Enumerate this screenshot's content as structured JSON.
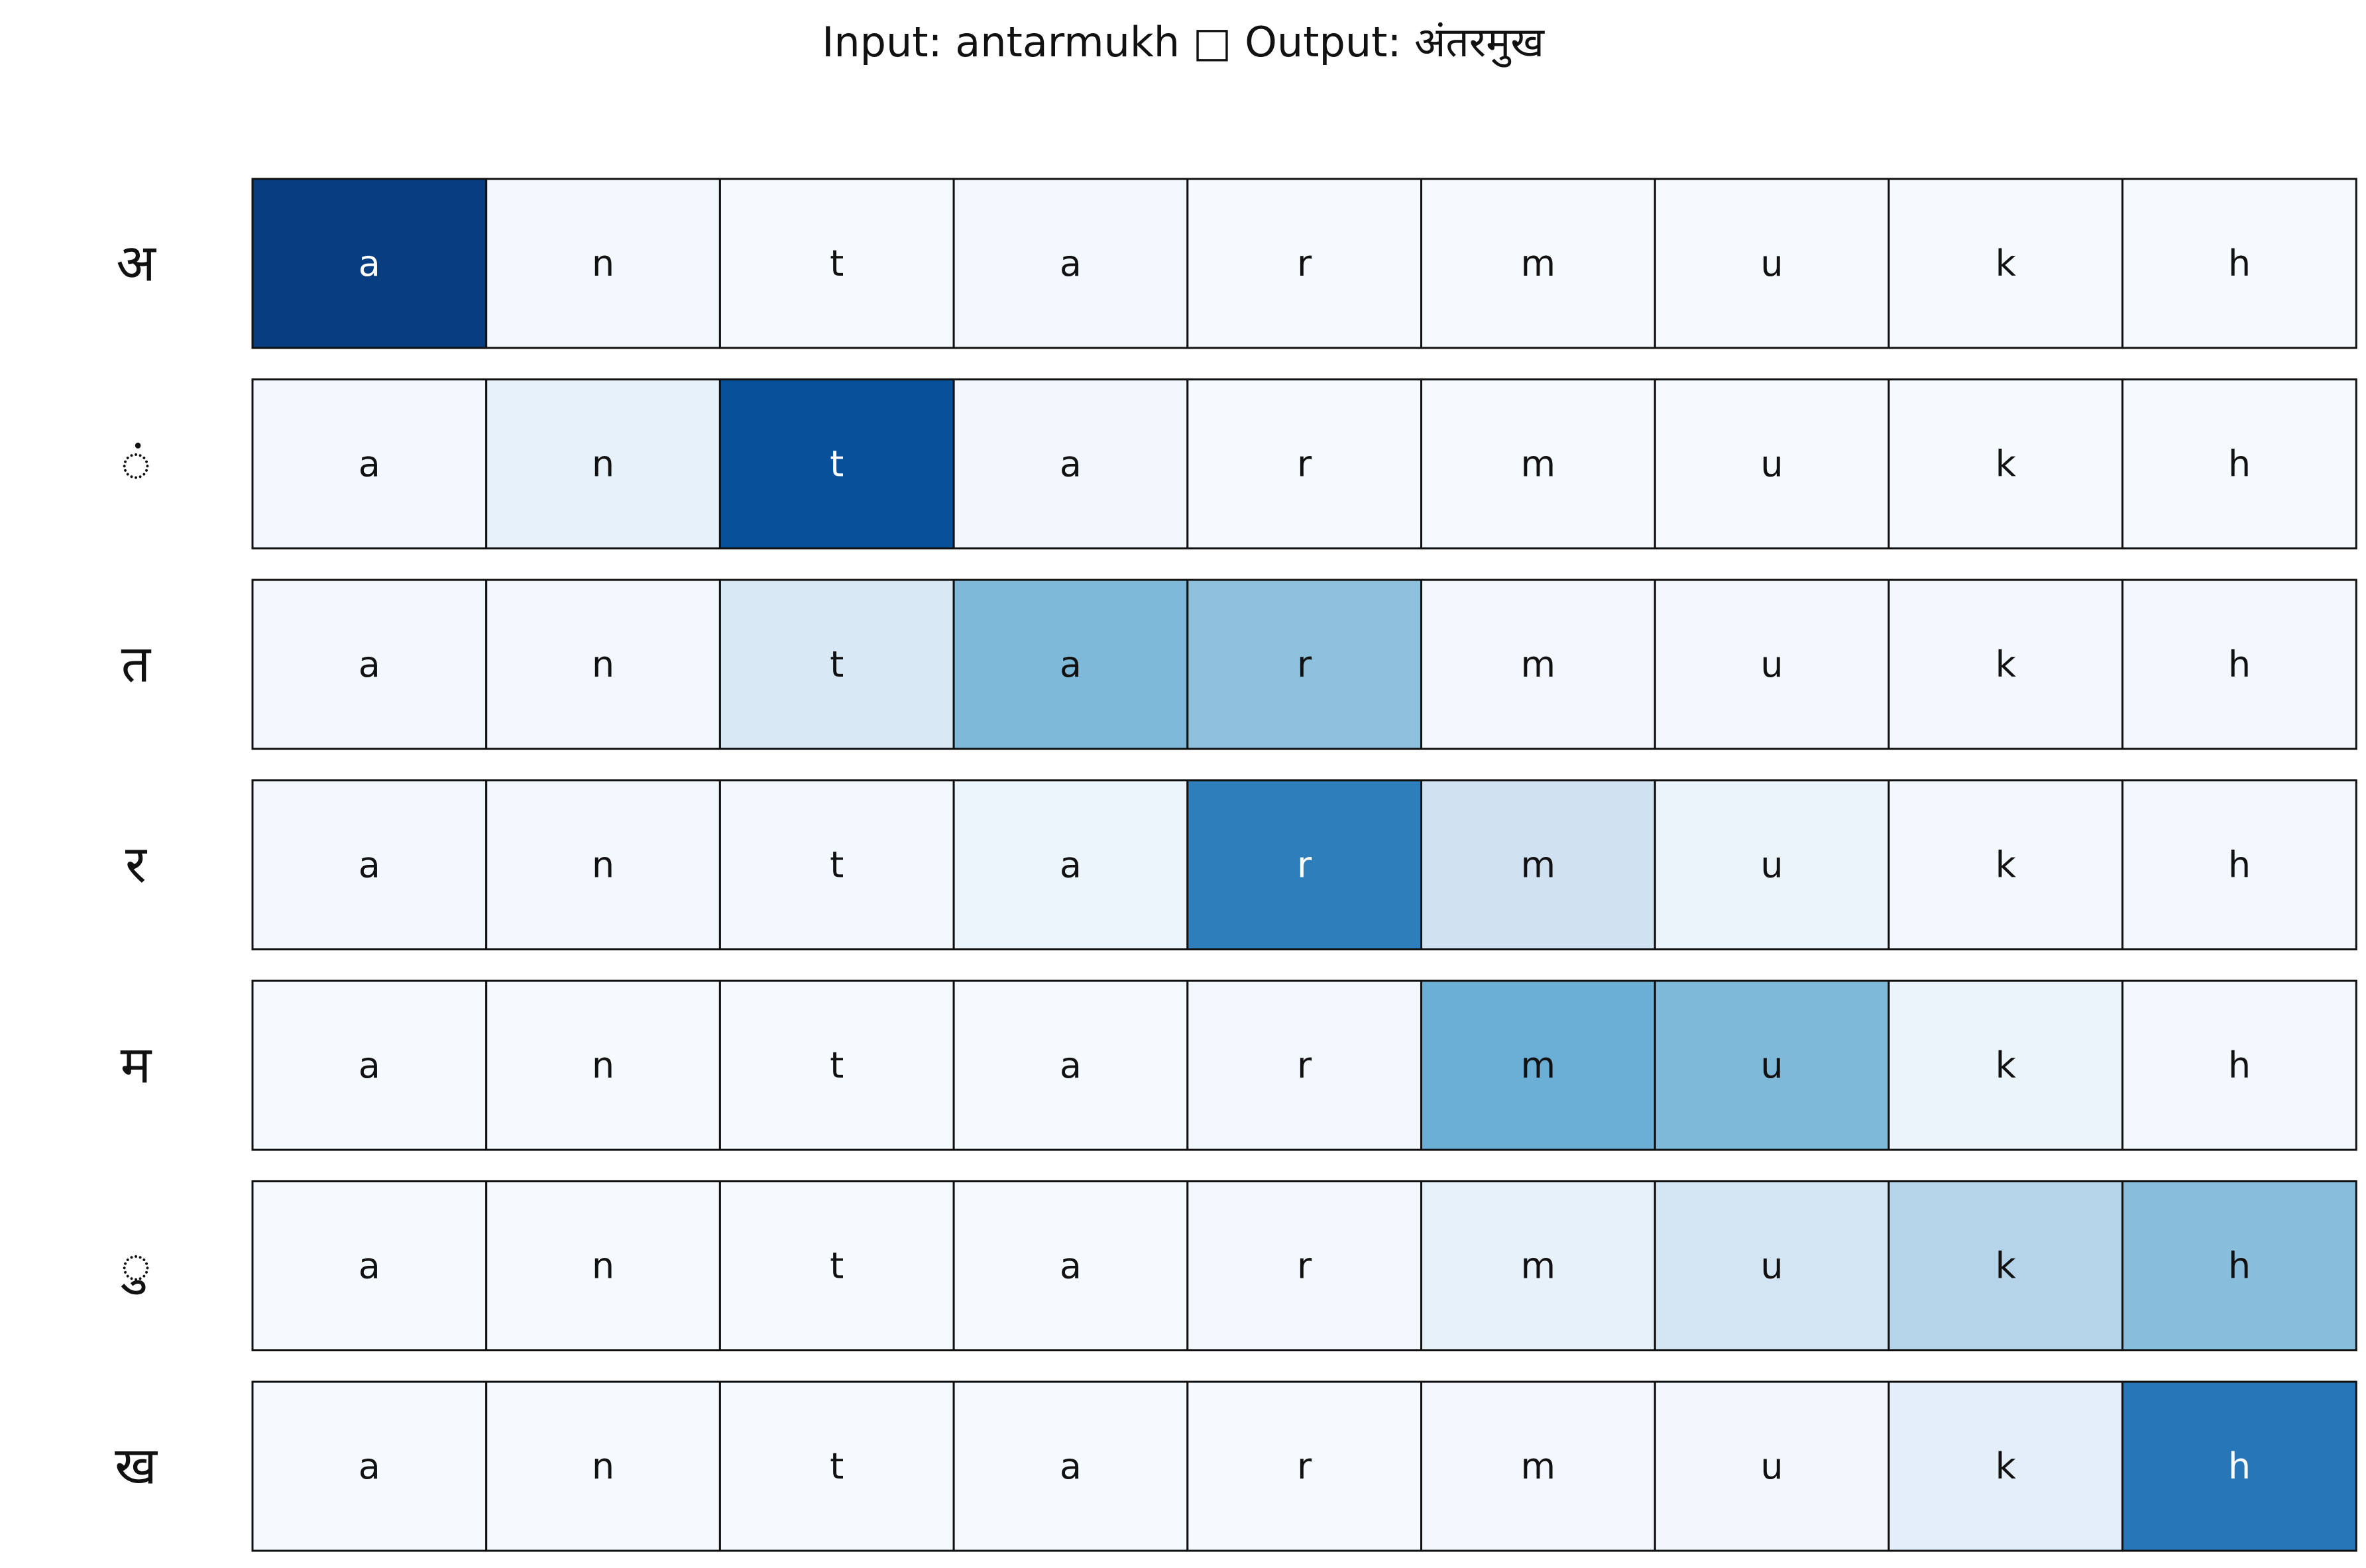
{
  "title": "Input: antarmukh □ Output: अंतरमुख",
  "chart_data": {
    "type": "heatmap",
    "colormap": "Blues",
    "x": [
      "a",
      "n",
      "t",
      "a",
      "r",
      "m",
      "u",
      "k",
      "h"
    ],
    "y": [
      "अ",
      "ं",
      "त",
      "र",
      "म",
      "ु",
      "ख"
    ],
    "values": [
      [
        0.95,
        0.02,
        0.01,
        0.02,
        0.01,
        0.01,
        0.01,
        0.01,
        0.01
      ],
      [
        0.02,
        0.08,
        0.88,
        0.03,
        0.01,
        0.01,
        0.01,
        0.01,
        0.01
      ],
      [
        0.02,
        0.02,
        0.15,
        0.45,
        0.42,
        0.02,
        0.02,
        0.02,
        0.02
      ],
      [
        0.02,
        0.02,
        0.02,
        0.05,
        0.7,
        0.2,
        0.06,
        0.02,
        0.02
      ],
      [
        0.01,
        0.01,
        0.01,
        0.01,
        0.02,
        0.5,
        0.45,
        0.06,
        0.02
      ],
      [
        0.01,
        0.01,
        0.01,
        0.01,
        0.02,
        0.08,
        0.18,
        0.3,
        0.43
      ],
      [
        0.01,
        0.01,
        0.01,
        0.01,
        0.01,
        0.02,
        0.03,
        0.1,
        0.73
      ]
    ]
  }
}
